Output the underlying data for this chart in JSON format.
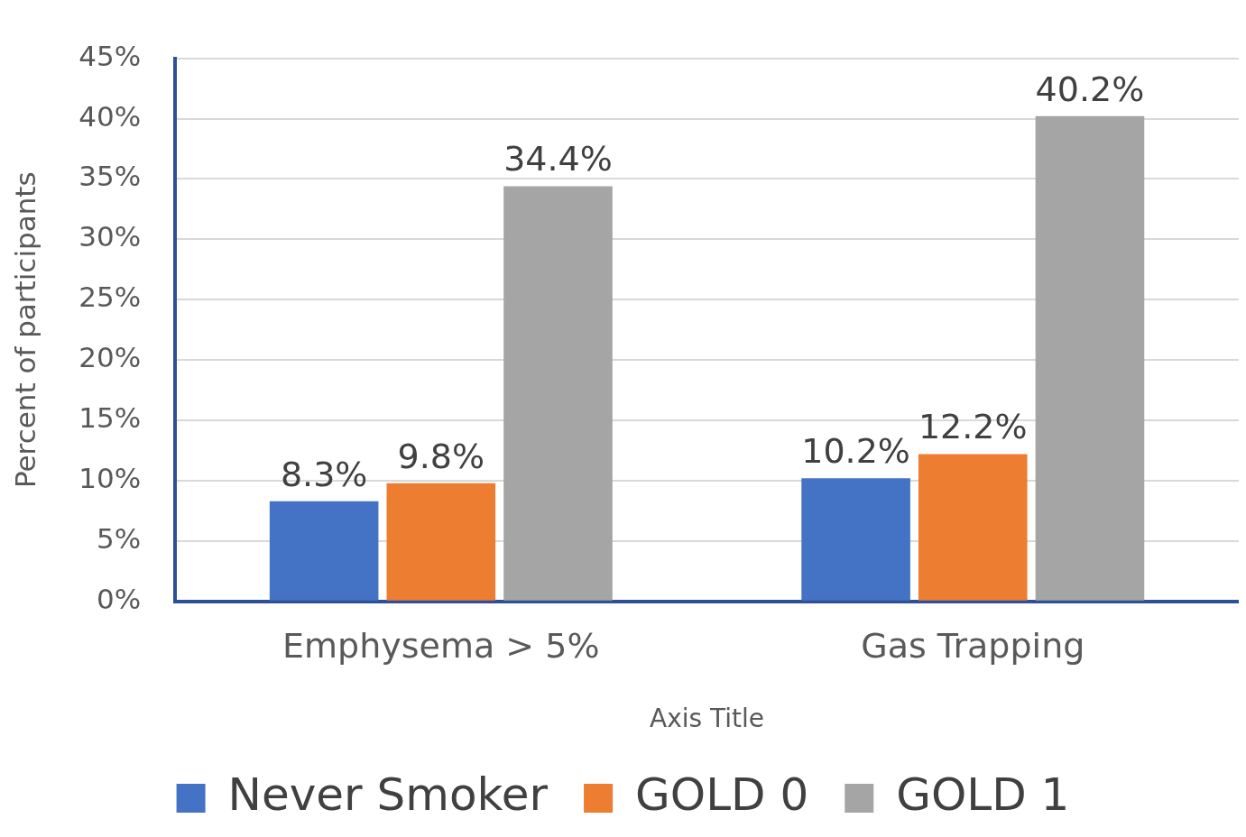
{
  "chart_data": {
    "type": "bar",
    "xlabel": "Axis Title",
    "ylabel": "Percent of participants",
    "categories": [
      "Emphysema > 5%",
      "Gas Trapping"
    ],
    "series": [
      {
        "name": "Never Smoker",
        "color": "#4472c4",
        "values": [
          8.3,
          10.2
        ],
        "value_labels": [
          "8.3%",
          "10.2%"
        ]
      },
      {
        "name": "GOLD 0",
        "color": "#ed7d31",
        "values": [
          9.8,
          12.2
        ],
        "value_labels": [
          "9.8%",
          "12.2%"
        ]
      },
      {
        "name": "GOLD 1",
        "color": "#a5a5a5",
        "values": [
          34.4,
          40.2
        ],
        "value_labels": [
          "34.4%",
          "40.2%"
        ]
      }
    ],
    "ylim": [
      0,
      45
    ],
    "yticks": [
      {
        "value": 0,
        "label": "0%"
      },
      {
        "value": 5,
        "label": "5%"
      },
      {
        "value": 10,
        "label": "10%"
      },
      {
        "value": 15,
        "label": "15%"
      },
      {
        "value": 20,
        "label": "20%"
      },
      {
        "value": 25,
        "label": "25%"
      },
      {
        "value": 30,
        "label": "30%"
      },
      {
        "value": 35,
        "label": "35%"
      },
      {
        "value": 40,
        "label": "40%"
      },
      {
        "value": 45,
        "label": "45%"
      }
    ],
    "grid": "y",
    "legend": "bottom"
  }
}
